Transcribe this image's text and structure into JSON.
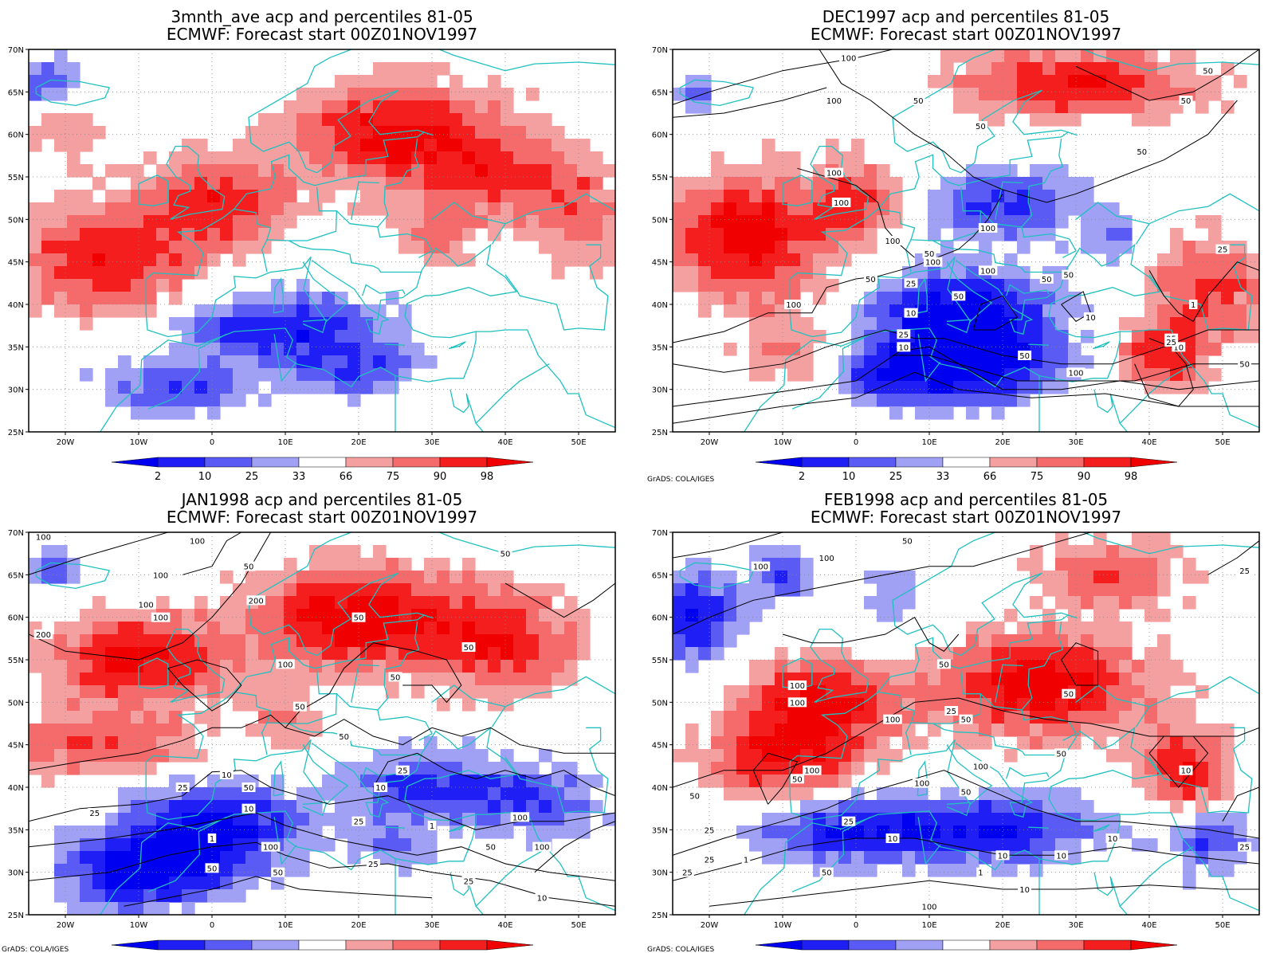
{
  "colors": {
    "blue_extreme": "#0000f0",
    "blue_2": "#1e1ef5",
    "blue_10": "#5a5af5",
    "blue_25": "#a0a0f5",
    "red_66": "#f5a0a0",
    "red_75": "#f56a6a",
    "red_90": "#f51e1e",
    "red_extreme": "#f00000",
    "coast": "#20c0c0",
    "contour": "#000000"
  },
  "icons": {
    "coastline": "coastline-lines",
    "contour": "contour-lines"
  },
  "axes": {
    "lat_ticks": [
      "25N",
      "30N",
      "35N",
      "40N",
      "45N",
      "50N",
      "55N",
      "60N",
      "65N",
      "70N"
    ],
    "lon_ticks": [
      "20W",
      "10W",
      "0",
      "10E",
      "20E",
      "30E",
      "40E",
      "50E"
    ],
    "lat_range": [
      25,
      70
    ],
    "lon_range": [
      -25,
      55
    ]
  },
  "colorbar": {
    "labels": [
      "2",
      "10",
      "25",
      "33",
      "66",
      "75",
      "90",
      "98"
    ]
  },
  "credit": "GrADS: COLA/IGES",
  "panels": [
    {
      "title_line1": "3mnth_ave acp and percentiles 81-05",
      "title_line2": "ECMWF: Forecast start 00Z01NOV1997",
      "contour_labels": []
    },
    {
      "title_line1": "DEC1997 acp and percentiles 81-05",
      "title_line2": "ECMWF: Forecast start 00Z01NOV1997",
      "contour_labels": [
        "100",
        "50",
        "100",
        "50",
        "100",
        "50",
        "50",
        "50",
        "100",
        "100",
        "50",
        "100",
        "100",
        "50",
        "100",
        "50",
        "50",
        "25",
        "10",
        "100",
        "50",
        "25",
        "10",
        "25",
        "50",
        "10",
        "1",
        "10",
        "25",
        "100",
        "50",
        "25"
      ]
    },
    {
      "title_line1": "JAN1998 acp and percentiles 81-05",
      "title_line2": "ECMWF: Forecast start 00Z01NOV1997",
      "contour_labels": [
        "100",
        "100",
        "100",
        "50",
        "50",
        "200",
        "100",
        "100",
        "200",
        "50",
        "50",
        "50",
        "100",
        "50",
        "50",
        "25",
        "10",
        "25",
        "50",
        "25",
        "10",
        "1",
        "100",
        "50",
        "10",
        "100",
        "25",
        "1",
        "50",
        "25",
        "25",
        "50",
        "10",
        "100"
      ]
    },
    {
      "title_line1": "FEB1998 acp and percentiles 81-05",
      "title_line2": "ECMWF: Forecast start 00Z01NOV1997",
      "contour_labels": [
        "100",
        "100",
        "50",
        "25",
        "100",
        "50",
        "100",
        "100",
        "50",
        "50",
        "50",
        "25",
        "100",
        "100",
        "50",
        "100",
        "50",
        "50",
        "25",
        "25",
        "10",
        "25",
        "10",
        "10",
        "1",
        "25",
        "10",
        "1",
        "50",
        "100",
        "10",
        "25",
        "10"
      ]
    }
  ]
}
